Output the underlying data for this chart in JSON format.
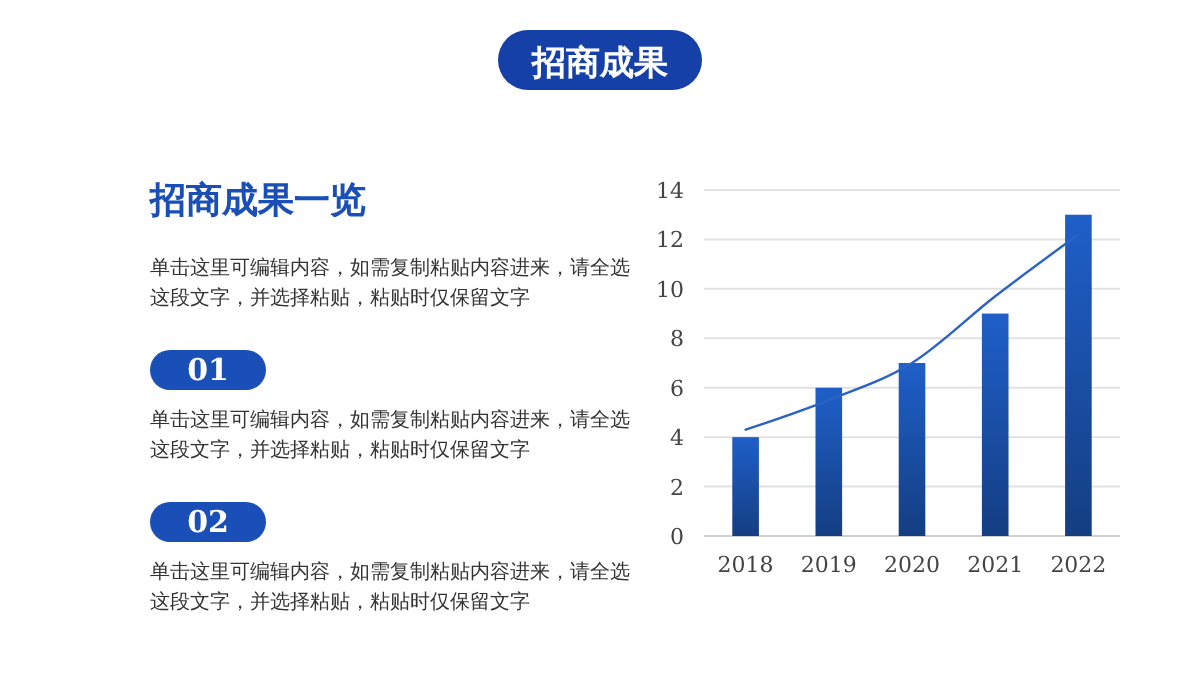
{
  "chart_data": {
    "type": "bar",
    "title": "招商成果",
    "subtitle": "招商成果一览",
    "annotations": [
      "单击这里可编辑内容，如需复制粘贴内容进来，请全选这段文字，并选择粘贴，粘贴时仅保留文字",
      "01",
      "单击这里可编辑内容，如需复制粘贴内容进来，请全选这段文字，并选择粘贴，粘贴时仅保留文字",
      "02",
      "单击这里可编辑内容，如需复制粘贴内容进来，请全选这段文字，并选择粘贴，粘贴时仅保留文字"
    ],
    "categories": [
      "2018",
      "2019",
      "2020",
      "2021",
      "2022"
    ],
    "series": [
      {
        "color": "#1f5fc8",
        "values": [
          4,
          6,
          7,
          9,
          13
        ]
      },
      {
        "type": "line",
        "color": "#2b63c4",
        "values": [
          4.3,
          5.5,
          7.0,
          9.7,
          12.2
        ]
      }
    ],
    "ylim": [
      0,
      14
    ],
    "yticks": [
      0,
      2,
      4,
      6,
      8,
      10,
      12,
      14
    ],
    "grid": "y"
  }
}
